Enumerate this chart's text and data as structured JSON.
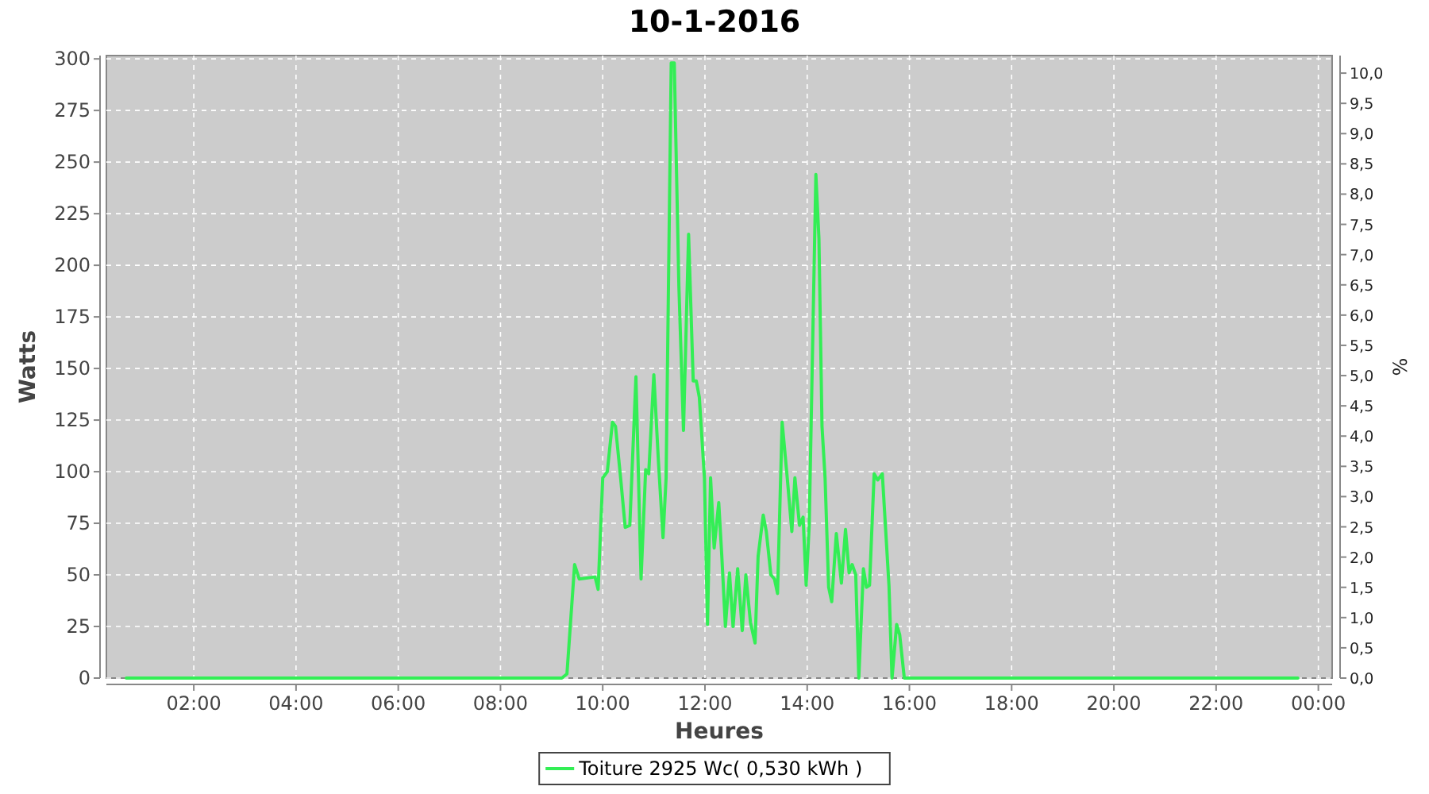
{
  "chart_data": {
    "type": "line",
    "title": "10-1-2016",
    "xlabel": "Heures",
    "ylabel": "Watts",
    "y2label": "%",
    "xlim": [
      0.29,
      24.27
    ],
    "xticks": [
      {
        "value": 2,
        "label": "02:00"
      },
      {
        "value": 4,
        "label": "04:00"
      },
      {
        "value": 6,
        "label": "06:00"
      },
      {
        "value": 8,
        "label": "08:00"
      },
      {
        "value": 10,
        "label": "10:00"
      },
      {
        "value": 12,
        "label": "12:00"
      },
      {
        "value": 14,
        "label": "14:00"
      },
      {
        "value": 16,
        "label": "16:00"
      },
      {
        "value": 18,
        "label": "18:00"
      },
      {
        "value": 20,
        "label": "20:00"
      },
      {
        "value": 22,
        "label": "22:00"
      },
      {
        "value": 24,
        "label": "00:00"
      }
    ],
    "ylim": [
      0,
      301.6
    ],
    "yticks": [
      0,
      25,
      50,
      75,
      100,
      125,
      150,
      175,
      200,
      225,
      250,
      275,
      300
    ],
    "y2lim": [
      0,
      10.29
    ],
    "y2ticks": [
      {
        "value": 0,
        "label": "0,0"
      },
      {
        "value": 0.5,
        "label": "0,5"
      },
      {
        "value": 1,
        "label": "1,0"
      },
      {
        "value": 1.5,
        "label": "1,5"
      },
      {
        "value": 2,
        "label": "2,0"
      },
      {
        "value": 2.5,
        "label": "2,5"
      },
      {
        "value": 3,
        "label": "3,0"
      },
      {
        "value": 3.5,
        "label": "3,5"
      },
      {
        "value": 4,
        "label": "4,0"
      },
      {
        "value": 4.5,
        "label": "4,5"
      },
      {
        "value": 5,
        "label": "5,0"
      },
      {
        "value": 5.5,
        "label": "5,5"
      },
      {
        "value": 6,
        "label": "6,0"
      },
      {
        "value": 6.5,
        "label": "6,5"
      },
      {
        "value": 7,
        "label": "7,0"
      },
      {
        "value": 7.5,
        "label": "7,5"
      },
      {
        "value": 8,
        "label": "8,0"
      },
      {
        "value": 8.5,
        "label": "8,5"
      },
      {
        "value": 9,
        "label": "9,0"
      },
      {
        "value": 9.5,
        "label": "9,5"
      },
      {
        "value": 10,
        "label": "10,0"
      }
    ],
    "grid": true,
    "legend": "bottom",
    "marker": "none",
    "line_style": "solid",
    "series": [
      {
        "name": "Toiture 2925 Wc( 0,530 kWh )",
        "color": "#33ee55",
        "x": [
          0.68,
          9.2,
          9.3,
          9.45,
          9.54,
          9.85,
          9.91,
          10.0,
          10.09,
          10.19,
          10.25,
          10.35,
          10.44,
          10.53,
          10.65,
          10.75,
          10.84,
          10.9,
          11.0,
          11.09,
          11.18,
          11.24,
          11.34,
          11.4,
          11.49,
          11.58,
          11.68,
          11.77,
          11.83,
          11.89,
          11.99,
          12.05,
          12.11,
          12.18,
          12.27,
          12.33,
          12.4,
          12.48,
          12.55,
          12.64,
          12.73,
          12.8,
          12.89,
          12.98,
          13.04,
          13.14,
          13.2,
          13.29,
          13.36,
          13.42,
          13.51,
          13.61,
          13.7,
          13.76,
          13.85,
          13.92,
          13.98,
          14.04,
          14.17,
          14.23,
          14.29,
          14.35,
          14.42,
          14.48,
          14.57,
          14.67,
          14.75,
          14.82,
          14.88,
          14.95,
          15.01,
          15.1,
          15.16,
          15.22,
          15.31,
          15.38,
          15.47,
          15.6,
          15.66,
          15.75,
          15.81,
          15.9,
          23.6
        ],
        "values": [
          0,
          0,
          2,
          55,
          48,
          49,
          43,
          97,
          100,
          124,
          122,
          97,
          73,
          74,
          146,
          48,
          101,
          99,
          147,
          105,
          68,
          97,
          298,
          298,
          190,
          120,
          215,
          144,
          144,
          136,
          97,
          26,
          97,
          63,
          85,
          59,
          25,
          51,
          25,
          53,
          23,
          50,
          27,
          17,
          59,
          79,
          71,
          50,
          48,
          41,
          124,
          97,
          71,
          97,
          74,
          78,
          45,
          74,
          244,
          213,
          122,
          97,
          44,
          37,
          70,
          46,
          72,
          51,
          55,
          50,
          0,
          53,
          44,
          45,
          99,
          96,
          99,
          45,
          0,
          26,
          21,
          0,
          0
        ]
      }
    ]
  }
}
